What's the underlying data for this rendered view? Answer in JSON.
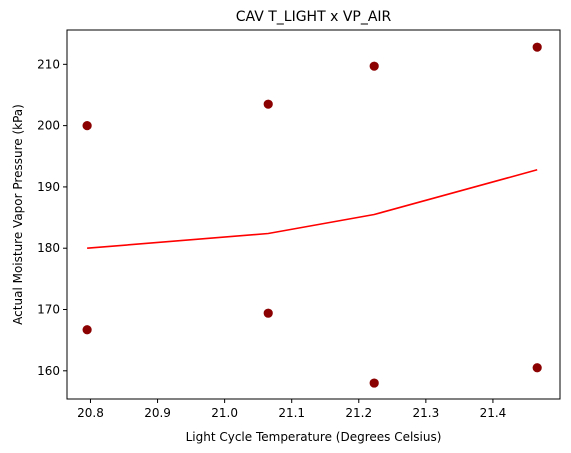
{
  "chart_data": {
    "type": "scatter",
    "title": "CAV T_LIGHT x VP_AIR",
    "xlabel": "Light Cycle Temperature (Degrees Celsius)",
    "ylabel": "Actual Moisture Vapor Pressure (kPa)",
    "xlim": [
      20.765,
      21.5
    ],
    "ylim": [
      155.4,
      215.6
    ],
    "xticks": [
      20.8,
      20.9,
      21.0,
      21.1,
      21.2,
      21.3,
      21.4
    ],
    "xtick_labels": [
      "20.8",
      "20.9",
      "21.0",
      "21.1",
      "21.2",
      "21.3",
      "21.4"
    ],
    "yticks": [
      160,
      170,
      180,
      190,
      200,
      210
    ],
    "ytick_labels": [
      "160",
      "170",
      "180",
      "190",
      "200",
      "210"
    ],
    "grid": false,
    "series": [
      {
        "kind": "scatter",
        "color": "#8b0000",
        "x": [
          20.795,
          20.795,
          21.065,
          21.065,
          21.223,
          21.223,
          21.466,
          21.466
        ],
        "y": [
          200.0,
          166.7,
          203.5,
          169.4,
          209.7,
          158.0,
          212.8,
          160.5
        ]
      },
      {
        "kind": "line",
        "color": "#ff0000",
        "x": [
          20.795,
          21.065,
          21.223,
          21.466
        ],
        "y": [
          180.0,
          182.4,
          185.5,
          192.8
        ]
      }
    ]
  }
}
